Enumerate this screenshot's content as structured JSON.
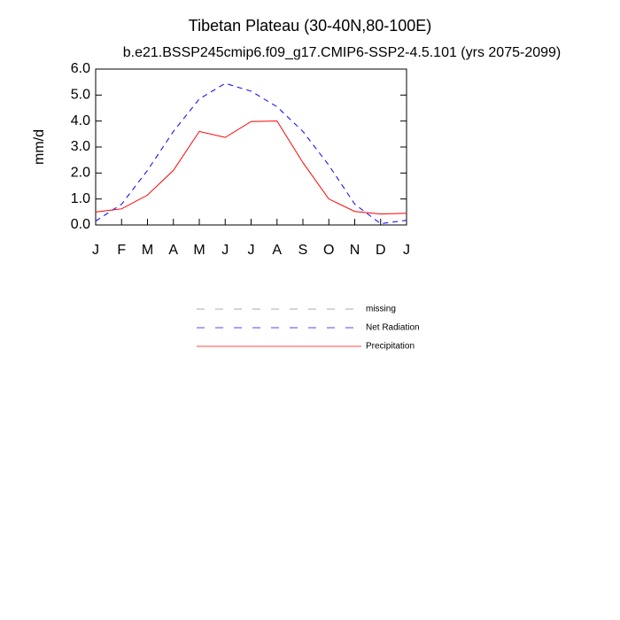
{
  "chart_data": {
    "type": "line",
    "title": "Tibetan Plateau (30-40N,80-100E)",
    "subtitle": "b.e21.BSSP245cmip6.f09_g17.CMIP6-SSP2-4.5.101 (yrs 2075-2099)",
    "ylabel": "mm/d",
    "categories": [
      "J",
      "F",
      "M",
      "A",
      "M",
      "J",
      "J",
      "A",
      "S",
      "O",
      "N",
      "D",
      "J"
    ],
    "series": [
      {
        "name": "missing",
        "color": "#888888",
        "dash": true,
        "values": [
          null,
          null,
          null,
          null,
          null,
          null,
          null,
          null,
          null,
          null,
          null,
          null,
          null
        ]
      },
      {
        "name": "Net Radiation",
        "color": "#0000ff",
        "dash": true,
        "values": [
          0.15,
          0.8,
          2.1,
          3.6,
          4.85,
          5.45,
          5.15,
          4.55,
          3.6,
          2.3,
          0.8,
          0.05,
          0.18
        ]
      },
      {
        "name": "Precipitation",
        "color": "#ff0000",
        "dash": false,
        "values": [
          0.5,
          0.62,
          1.15,
          2.1,
          3.6,
          3.37,
          3.98,
          4.0,
          2.4,
          1.0,
          0.52,
          0.42,
          0.45
        ]
      }
    ],
    "ylim": [
      0,
      6
    ],
    "yticks": [
      {
        "value": 0,
        "label": "0.0"
      },
      {
        "value": 1,
        "label": "1.0"
      },
      {
        "value": 2,
        "label": "2.0"
      },
      {
        "value": 3,
        "label": "3.0"
      },
      {
        "value": 4,
        "label": "4.0"
      },
      {
        "value": 5,
        "label": "5.0"
      },
      {
        "value": 6,
        "label": "6.0"
      }
    ]
  }
}
